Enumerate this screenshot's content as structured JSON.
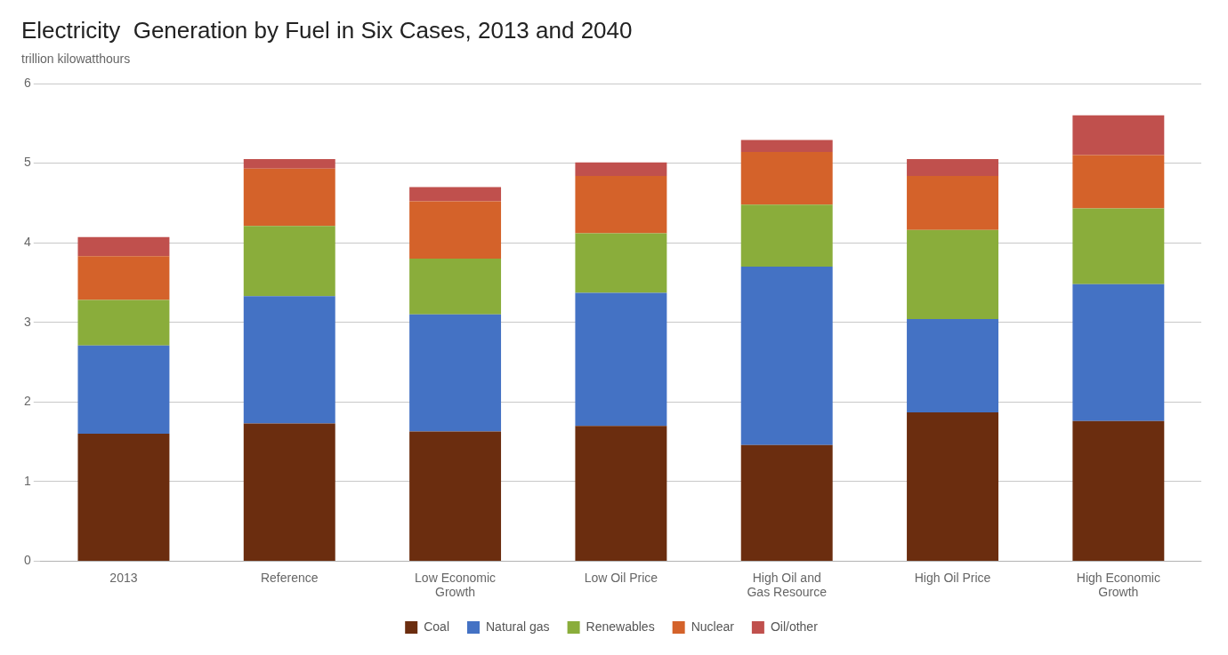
{
  "chart_data": {
    "type": "bar",
    "stacked": true,
    "title": "Electricity  Generation by Fuel in Six Cases, 2013 and 2040",
    "subtitle": "trillion kilowatthours",
    "categories": [
      "2013",
      "Reference",
      "Low Economic\nGrowth",
      "Low Oil Price",
      "High Oil and\nGas Resource",
      "High Oil Price",
      "High Economic\nGrowth"
    ],
    "series": [
      {
        "name": "Coal",
        "color": "#6B2D0F",
        "values": [
          1.6,
          1.73,
          1.63,
          1.7,
          1.46,
          1.87,
          1.76
        ]
      },
      {
        "name": "Natural gas",
        "color": "#4472C4",
        "values": [
          1.11,
          1.6,
          1.47,
          1.67,
          2.24,
          1.17,
          1.72
        ]
      },
      {
        "name": "Renewables",
        "color": "#8AAD3B",
        "values": [
          0.57,
          0.88,
          0.7,
          0.75,
          0.78,
          1.12,
          0.95
        ]
      },
      {
        "name": "Nuclear",
        "color": "#D4622A",
        "values": [
          0.55,
          0.72,
          0.72,
          0.72,
          0.66,
          0.68,
          0.67
        ]
      },
      {
        "name": "Oil/other",
        "color": "#C0504D",
        "values": [
          0.24,
          0.12,
          0.18,
          0.17,
          0.15,
          0.21,
          0.5
        ]
      }
    ],
    "ylim": [
      0,
      6
    ],
    "yticks": [
      0,
      1,
      2,
      3,
      4,
      5,
      6
    ],
    "grid": true,
    "legend": "bottom"
  }
}
